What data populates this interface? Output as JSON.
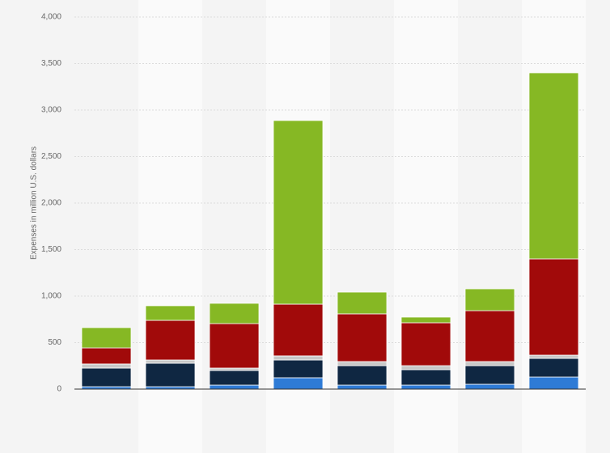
{
  "chart_data": {
    "type": "stacked-bar",
    "y_label": "Expenses in million U.S. dollars",
    "categories": [
      null,
      null,
      null,
      null,
      null,
      null,
      null,
      null
    ],
    "series": [
      {
        "color": "#2e7bd6",
        "values": [
          26,
          26,
          43,
          122,
          43,
          43,
          52,
          130
        ]
      },
      {
        "color": "#0f2742",
        "values": [
          200,
          252,
          157,
          191,
          209,
          166,
          200,
          200
        ]
      },
      {
        "color": "#c8c8c8",
        "values": [
          44,
          35,
          26,
          44,
          44,
          43,
          44,
          35
        ]
      },
      {
        "color": "#a10a0a",
        "values": [
          173,
          426,
          478,
          556,
          513,
          461,
          547,
          1035
        ]
      },
      {
        "color": "#86b824",
        "values": [
          218,
          157,
          218,
          1974,
          234,
          61,
          235,
          2000
        ]
      }
    ],
    "ylim": [
      0,
      4000
    ],
    "yticks": [
      0,
      500,
      {
        "value": 1000,
        "label": "1,000"
      },
      {
        "value": 1500,
        "label": "1,500"
      },
      {
        "value": 2000,
        "label": "2,000"
      },
      {
        "value": 2500,
        "label": "2,500"
      },
      {
        "value": 3000,
        "label": "3,000"
      },
      {
        "value": 3500,
        "label": "3,500"
      },
      {
        "value": 4000,
        "label": "4,000"
      }
    ],
    "grid": true
  }
}
